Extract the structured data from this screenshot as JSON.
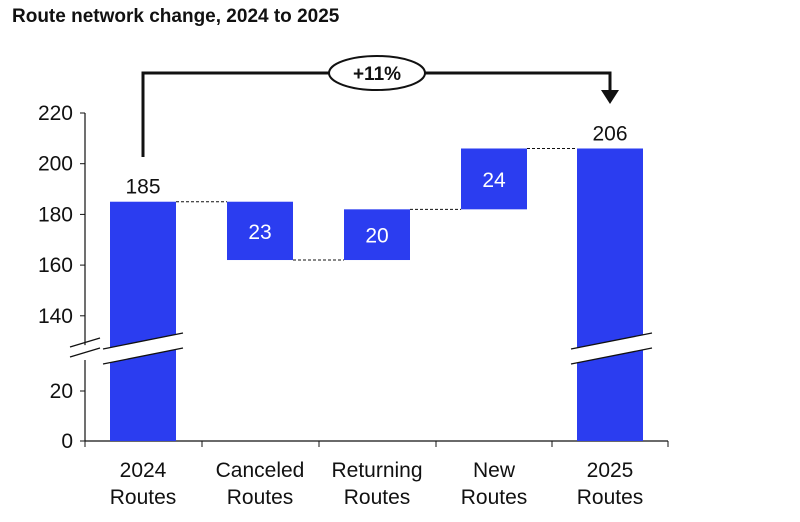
{
  "chart_data": {
    "type": "bar",
    "subtype": "waterfall",
    "title": "Route network change, 2024 to 2025",
    "xlabel": "",
    "ylabel": "",
    "categories": [
      [
        "2024",
        "Routes"
      ],
      [
        "Canceled",
        "Routes"
      ],
      [
        "Returning",
        "Routes"
      ],
      [
        "New",
        "Routes"
      ],
      [
        "2025",
        "Routes"
      ]
    ],
    "steps": [
      {
        "kind": "total",
        "value": 185,
        "label": "185"
      },
      {
        "kind": "decrease",
        "value": 23,
        "label": "23"
      },
      {
        "kind": "increase",
        "value": 20,
        "label": "20"
      },
      {
        "kind": "increase",
        "value": 24,
        "label": "24"
      },
      {
        "kind": "total",
        "value": 206,
        "label": "206"
      }
    ],
    "yticks_upper": [
      "140",
      "160",
      "180",
      "200",
      "220"
    ],
    "yticks_lower": [
      "0",
      "20"
    ],
    "ylim_upper": [
      130,
      220
    ],
    "ylim_lower": [
      0,
      30
    ],
    "axis_break": true,
    "grid": false,
    "annotation": {
      "text": "+11%",
      "from": 0,
      "to": 4
    },
    "colors": {
      "bar": "#2b3df0",
      "text": "#111111"
    }
  }
}
